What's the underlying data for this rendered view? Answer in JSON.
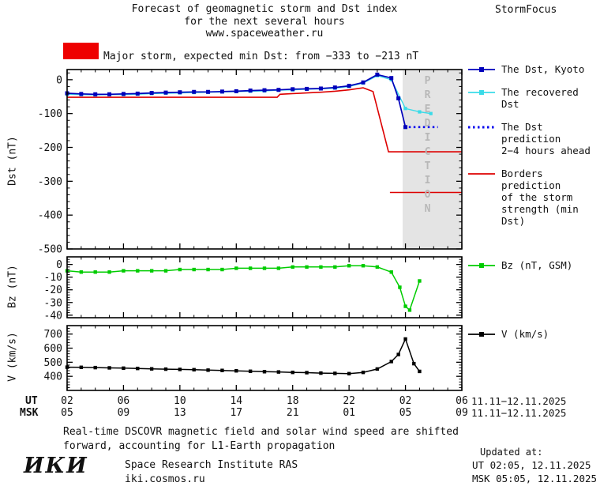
{
  "header": {
    "title_line1": "Forecast of geomagnetic storm and Dst index",
    "title_line2": "for the next several hours",
    "title_line3": "www.spaceweather.ru",
    "brand": "StormFocus"
  },
  "alert": {
    "color": "#ee0000",
    "label": "Major storm, expected min Dst: from −333 to −213 nT"
  },
  "prediction_band": {
    "label": "PREDICTION",
    "start_t": 23.8,
    "fill": "#e4e4e4",
    "text_color": "#b8b8b8"
  },
  "chart_data": [
    {
      "id": "dst",
      "type": "line",
      "ylabel": "Dst (nT)",
      "xlabel": "UT hours 02 (11.11.2025) to 06 (12.11.2025)",
      "xlim": [
        0,
        28
      ],
      "ylim": [
        -500,
        30
      ],
      "yticks": [
        0,
        -100,
        -200,
        -300,
        -400,
        -500
      ],
      "series": [
        {
          "name": "Borders prediction of the storm strength (min Dst) — upper",
          "color": "#dd0000",
          "width": 1.6,
          "points": [
            [
              0,
              -52
            ],
            [
              14.9,
              -52
            ],
            [
              15.1,
              -43
            ],
            [
              16,
              -41
            ],
            [
              17,
              -39
            ],
            [
              18,
              -37
            ],
            [
              19,
              -34
            ],
            [
              20,
              -30
            ],
            [
              21,
              -24
            ],
            [
              21.7,
              -35
            ],
            [
              22.8,
              -213
            ],
            [
              28,
              -213
            ]
          ]
        },
        {
          "name": "Borders prediction of the storm strength (min Dst) — lower",
          "color": "#dd0000",
          "width": 1.6,
          "points": [
            [
              22.9,
              -333
            ],
            [
              28,
              -333
            ]
          ]
        },
        {
          "name": "The recovered Dst",
          "color": "#3adbe8",
          "width": 1.4,
          "marker": "square",
          "marker_size": 4.2,
          "points": [
            [
              0,
              -43
            ],
            [
              1,
              -44
            ],
            [
              2,
              -45
            ],
            [
              3,
              -44
            ],
            [
              4,
              -44
            ],
            [
              5,
              -43
            ],
            [
              6,
              -41
            ],
            [
              7,
              -40
            ],
            [
              8,
              -39
            ],
            [
              9,
              -38
            ],
            [
              10,
              -37
            ],
            [
              11,
              -36
            ],
            [
              12,
              -35
            ],
            [
              13,
              -34
            ],
            [
              14,
              -33
            ],
            [
              15,
              -31
            ],
            [
              16,
              -30
            ],
            [
              17,
              -28
            ],
            [
              18,
              -27
            ],
            [
              19,
              -25
            ],
            [
              20,
              -20
            ],
            [
              21,
              -10
            ],
            [
              22,
              12
            ],
            [
              23,
              0
            ],
            [
              24,
              -85
            ],
            [
              25,
              -95
            ],
            [
              25.8,
              -100
            ]
          ]
        },
        {
          "name": "The Dst prediction 2−4 hours ahead",
          "color": "#0000ee",
          "width": 2.6,
          "style": "dotted",
          "points": [
            [
              23.9,
              -140
            ],
            [
              26.3,
              -140
            ]
          ]
        },
        {
          "name": "The Dst, Kyoto",
          "color": "#0000bb",
          "width": 1.7,
          "marker": "square",
          "marker_size": 5,
          "points": [
            [
              0,
              -40
            ],
            [
              1,
              -42
            ],
            [
              2,
              -43
            ],
            [
              3,
              -43
            ],
            [
              4,
              -42
            ],
            [
              5,
              -41
            ],
            [
              6,
              -39
            ],
            [
              7,
              -38
            ],
            [
              8,
              -37
            ],
            [
              9,
              -36
            ],
            [
              10,
              -36
            ],
            [
              11,
              -35
            ],
            [
              12,
              -34
            ],
            [
              13,
              -32
            ],
            [
              14,
              -31
            ],
            [
              15,
              -30
            ],
            [
              16,
              -28
            ],
            [
              17,
              -27
            ],
            [
              18,
              -26
            ],
            [
              19,
              -23
            ],
            [
              20,
              -18
            ],
            [
              21,
              -8
            ],
            [
              22,
              15
            ],
            [
              23,
              5
            ],
            [
              23.5,
              -55
            ],
            [
              24,
              -140
            ]
          ]
        }
      ]
    },
    {
      "id": "bz",
      "type": "line",
      "ylabel": "Bz (nT)",
      "xlim": [
        0,
        28
      ],
      "ylim": [
        -42,
        6
      ],
      "yticks": [
        0,
        -10,
        -20,
        -30,
        -40
      ],
      "series": [
        {
          "name": "Bz (nT, GSM)",
          "color": "#00cc00",
          "width": 1.5,
          "marker": "square",
          "marker_size": 4.4,
          "points": [
            [
              0,
              -5
            ],
            [
              1,
              -6
            ],
            [
              2,
              -6
            ],
            [
              3,
              -6
            ],
            [
              4,
              -5
            ],
            [
              5,
              -5
            ],
            [
              6,
              -5
            ],
            [
              7,
              -5
            ],
            [
              8,
              -4
            ],
            [
              9,
              -4
            ],
            [
              10,
              -4
            ],
            [
              11,
              -4
            ],
            [
              12,
              -3
            ],
            [
              13,
              -3
            ],
            [
              14,
              -3
            ],
            [
              15,
              -3
            ],
            [
              16,
              -2
            ],
            [
              17,
              -2
            ],
            [
              18,
              -2
            ],
            [
              19,
              -2
            ],
            [
              20,
              -1
            ],
            [
              21,
              -1
            ],
            [
              22,
              -2
            ],
            [
              23,
              -6
            ],
            [
              23.6,
              -18
            ],
            [
              24,
              -33
            ],
            [
              24.3,
              -36
            ],
            [
              25,
              -13
            ]
          ]
        }
      ]
    },
    {
      "id": "v",
      "type": "line",
      "ylabel": "V (km/s)",
      "xlim": [
        0,
        28
      ],
      "ylim": [
        300,
        760
      ],
      "yticks": [
        400,
        500,
        600,
        700
      ],
      "series": [
        {
          "name": "V (km/s)",
          "color": "#000000",
          "width": 1.5,
          "marker": "square",
          "marker_size": 4.4,
          "points": [
            [
              0,
              465
            ],
            [
              1,
              464
            ],
            [
              2,
              462
            ],
            [
              3,
              460
            ],
            [
              4,
              458
            ],
            [
              5,
              456
            ],
            [
              6,
              453
            ],
            [
              7,
              451
            ],
            [
              8,
              449
            ],
            [
              9,
              447
            ],
            [
              10,
              444
            ],
            [
              11,
              442
            ],
            [
              12,
              439
            ],
            [
              13,
              436
            ],
            [
              14,
              433
            ],
            [
              15,
              431
            ],
            [
              16,
              428
            ],
            [
              17,
              426
            ],
            [
              18,
              423
            ],
            [
              19,
              421
            ],
            [
              20,
              419
            ],
            [
              21,
              428
            ],
            [
              22,
              452
            ],
            [
              23,
              505
            ],
            [
              23.5,
              555
            ],
            [
              24,
              665
            ],
            [
              24.6,
              490
            ],
            [
              25,
              435
            ]
          ]
        }
      ]
    }
  ],
  "xaxis": {
    "tick_t": [
      0,
      4,
      8,
      12,
      16,
      20,
      24,
      28
    ],
    "ut_label": "UT",
    "msk_label": "MSK",
    "ut_ticks": [
      "02",
      "06",
      "10",
      "14",
      "18",
      "22",
      "02",
      "06"
    ],
    "msk_ticks": [
      "05",
      "09",
      "13",
      "17",
      "21",
      "01",
      "05",
      "09"
    ],
    "ut_date": "11.11−12.11.2025",
    "msk_date": "11.11−12.11.2025"
  },
  "legends": {
    "dst": [
      {
        "glyph": "square-line",
        "color": "#0000bb",
        "lines": [
          "The Dst, Kyoto"
        ]
      },
      {
        "glyph": "square-line",
        "color": "#3adbe8",
        "lines": [
          "The recovered Dst"
        ]
      },
      {
        "glyph": "dotted-line",
        "color": "#0000ee",
        "lines": [
          "The Dst prediction",
          "2−4 hours ahead"
        ]
      },
      {
        "glyph": "line",
        "color": "#dd0000",
        "lines": [
          "Borders prediction",
          "of the storm",
          "strength (min Dst)"
        ]
      }
    ],
    "bz": [
      {
        "glyph": "square-line",
        "color": "#00cc00",
        "lines": [
          "Bz (nT, GSM)"
        ]
      }
    ],
    "v": [
      {
        "glyph": "square-line",
        "color": "#000000",
        "lines": [
          "V (km/s)"
        ]
      }
    ]
  },
  "note": {
    "line1": "Real-time DSCOVR magnetic field and solar wind speed are shifted",
    "line2": "forward, accounting for L1-Earth propagation"
  },
  "footer": {
    "logo": "ИКИ",
    "institute": "Space Research Institute RAS",
    "site": "iki.cosmos.ru",
    "updated_label": "Updated at:",
    "updated_ut": "UT  02:05, 12.11.2025",
    "updated_msk": "MSK 05:05, 12.11.2025"
  }
}
